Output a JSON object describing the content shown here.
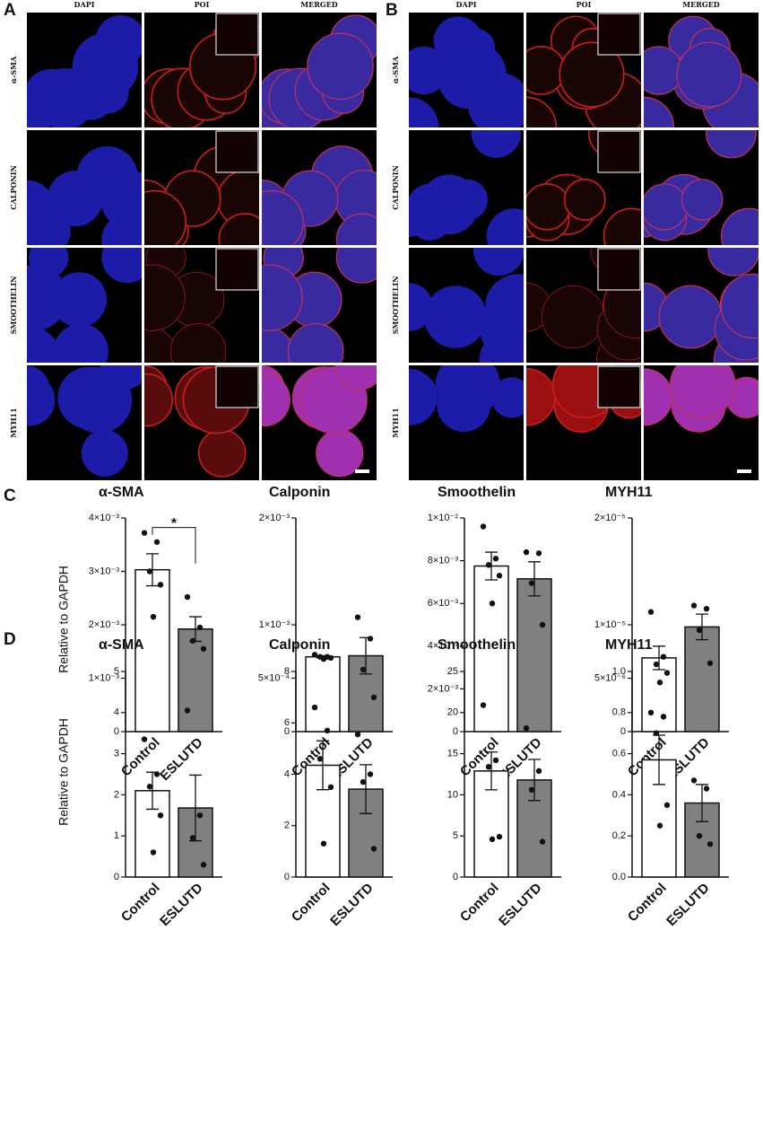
{
  "figure": {
    "panel_a": {
      "letter": "A",
      "columns": [
        "DAPI",
        "POI",
        "MERGED"
      ],
      "rows": [
        "α-SMA",
        "CALPONIN",
        "SMOOTHELIN",
        "MYH11"
      ]
    },
    "panel_b": {
      "letter": "B",
      "columns": [
        "DAPI",
        "POI",
        "MERGED"
      ],
      "rows": [
        "α-SMA",
        "CALPONIN",
        "SMOOTHELIN",
        "MYH11"
      ]
    },
    "panel_c": {
      "letter": "C",
      "y_label": "Relative to GAPDH"
    },
    "panel_d": {
      "letter": "D",
      "y_label": "Relative to GAPDH"
    }
  },
  "chart_data": [
    {
      "type": "bar",
      "title": "α-SMA",
      "categories": [
        "Control",
        "ESLUTD"
      ],
      "values": [
        0.00303,
        0.00192
      ],
      "errors": [
        0.0003,
        0.00023
      ],
      "points": [
        [
          0.00372,
          0.00355,
          0.003,
          0.00275,
          0.00215
        ],
        [
          0.00252,
          0.00195,
          0.0017,
          0.00155
        ]
      ],
      "colors": [
        "#ffffff",
        "#808080"
      ],
      "annotation": "*",
      "ylim": [
        0,
        0.004
      ],
      "yticks": [
        0,
        {
          "value": 0.001,
          "label": "1×10⁻³"
        },
        {
          "value": 0.002,
          "label": "2×10⁻³"
        },
        {
          "value": 0.003,
          "label": "3×10⁻³"
        },
        {
          "value": 0.004,
          "label": "4×10⁻³"
        }
      ]
    },
    {
      "type": "bar",
      "title": "Calponin",
      "categories": [
        "Control",
        "ESLUTD"
      ],
      "values": [
        0.0007,
        0.00071
      ],
      "errors": [
        1e-05,
        0.00017
      ],
      "points": [
        [
          0.00072,
          0.0007,
          0.0007,
          0.00069,
          0.00068
        ],
        [
          0.00107,
          0.00087,
          0.00058,
          0.00032
        ]
      ],
      "colors": [
        "#ffffff",
        "#808080"
      ],
      "ylim": [
        0,
        0.002
      ],
      "yticks": [
        0,
        {
          "value": 0.0005,
          "label": "5×10⁻⁴"
        },
        {
          "value": 0.001,
          "label": "1×10⁻³"
        },
        {
          "value": 0.002,
          "label": "2×10⁻³"
        }
      ]
    },
    {
      "type": "bar",
      "title": "Smoothelin",
      "categories": [
        "Control",
        "ESLUTD"
      ],
      "values": [
        0.00775,
        0.00715
      ],
      "errors": [
        0.00065,
        0.0008
      ],
      "points": [
        [
          0.0096,
          0.0081,
          0.0078,
          0.0073,
          0.006
        ],
        [
          0.0084,
          0.00835,
          0.00695,
          0.005
        ]
      ],
      "colors": [
        "#ffffff",
        "#808080"
      ],
      "ylim": [
        0,
        0.01
      ],
      "yticks": [
        0,
        {
          "value": 0.002,
          "label": "2×10⁻³"
        },
        {
          "value": 0.004,
          "label": "4×10⁻³"
        },
        {
          "value": 0.006,
          "label": "6×10⁻³"
        },
        {
          "value": 0.008,
          "label": "8×10⁻³"
        },
        {
          "value": 0.01,
          "label": "1×10⁻²"
        }
      ]
    },
    {
      "type": "bar",
      "title": "MYH11",
      "categories": [
        "Control",
        "ESLUTD"
      ],
      "values": [
        6.9e-06,
        9.8e-06
      ],
      "errors": [
        1.1e-06,
        1.2e-06
      ],
      "points": [
        [
          1.12e-05,
          7e-06,
          6.3e-06,
          5.5e-06,
          4.6e-06
        ],
        [
          1.18e-05,
          1.15e-05,
          9.5e-06,
          6.4e-06
        ]
      ],
      "colors": [
        "#ffffff",
        "#808080"
      ],
      "ylim": [
        0,
        2e-05
      ],
      "yticks": [
        0,
        {
          "value": 5e-06,
          "label": "5×10⁻⁶"
        },
        {
          "value": 1e-05,
          "label": "1×10⁻⁵"
        },
        {
          "value": 2e-05,
          "label": "2×10⁻⁵"
        }
      ]
    },
    {
      "type": "bar",
      "title": "α-SMA",
      "categories": [
        "Control",
        "ESLUTD"
      ],
      "values": [
        2.1,
        1.68
      ],
      "errors": [
        0.45,
        0.8
      ],
      "points": [
        [
          3.35,
          2.5,
          2.2,
          1.5,
          0.6
        ],
        [
          4.05,
          1.5,
          0.95,
          0.3
        ]
      ],
      "colors": [
        "#ffffff",
        "#808080"
      ],
      "ylim": [
        0,
        5
      ],
      "yticks": [
        0,
        1,
        2,
        3,
        4,
        5
      ]
    },
    {
      "type": "bar",
      "title": "Calponin",
      "categories": [
        "Control",
        "ESLUTD"
      ],
      "values": [
        4.35,
        3.42
      ],
      "errors": [
        0.95,
        0.95
      ],
      "points": [
        [
          6.6,
          5.7,
          4.6,
          3.5,
          1.3
        ],
        [
          5.55,
          4.0,
          3.7,
          1.1
        ]
      ],
      "colors": [
        "#ffffff",
        "#808080"
      ],
      "ylim": [
        0,
        8
      ],
      "yticks": [
        0,
        2,
        4,
        6,
        8
      ]
    },
    {
      "type": "bar",
      "title": "Smoothelin",
      "categories": [
        "Control",
        "ESLUTD"
      ],
      "values": [
        12.9,
        11.8
      ],
      "errors": [
        2.3,
        2.5
      ],
      "points": [
        [
          20.9,
          14.2,
          13.4,
          4.9,
          4.6
        ],
        [
          18.1,
          12.9,
          10.6,
          4.3
        ]
      ],
      "colors": [
        "#ffffff",
        "#808080"
      ],
      "ylim": [
        0,
        25
      ],
      "yticks": [
        0,
        5,
        10,
        15,
        20,
        25
      ]
    },
    {
      "type": "bar",
      "title": "MYH11",
      "categories": [
        "Control",
        "ESLUTD"
      ],
      "values": [
        0.57,
        0.36
      ],
      "errors": [
        0.12,
        0.09
      ],
      "points": [
        [
          0.8,
          0.78,
          0.7,
          0.35,
          0.25
        ],
        [
          0.47,
          0.43,
          0.2,
          0.16
        ]
      ],
      "colors": [
        "#ffffff",
        "#808080"
      ],
      "ylim": [
        0,
        1.0
      ],
      "yticks": [
        {
          "value": 0,
          "label": "0.0"
        },
        0.2,
        0.4,
        0.6,
        0.8,
        {
          "value": 1.0,
          "label": "1.0"
        }
      ]
    }
  ]
}
